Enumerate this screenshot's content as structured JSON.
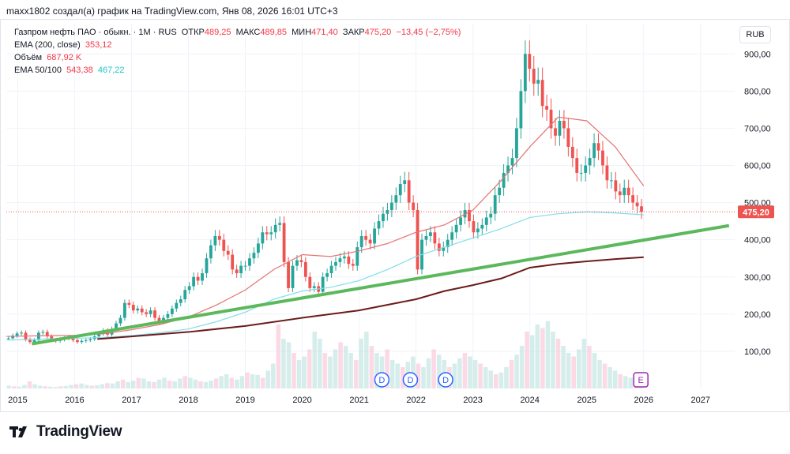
{
  "header": {
    "author_line": "maxx1802 создал(а) график на TradingView.com, Янв 08, 2026 16:01 UTC+3"
  },
  "legend": {
    "symbol": "Газпром нефть ПАО · обыкн. · 1M · RUS",
    "open_label": "ОТКР",
    "open": "489,25",
    "high_label": "МАКС",
    "high": "489,85",
    "low_label": "МИН",
    "low": "471,40",
    "close_label": "ЗАКР",
    "close": "475,20",
    "change": "−13,45 (−2,75%)",
    "ema200_label": "EMA (200, close)",
    "ema200_value": "353,12",
    "volume_label": "Объём",
    "volume_value": "687,92 K",
    "ema50100_label": "EMA 50/100",
    "ema50_value": "543,38",
    "ema100_value": "467,22"
  },
  "currency_button": "RUB",
  "brand": {
    "name": "TradingView"
  },
  "colors": {
    "up": "#26a69a",
    "down": "#ef5350",
    "trend": "#5cb85c",
    "ema200": "#6d1b1b",
    "ema50": "#e57373",
    "ema100": "#80deea",
    "event": "#2962ff",
    "earnings": "#9c27b0"
  },
  "chart_data": {
    "type": "candlestick",
    "title": "Газпром нефть ПАО · обыкн. · 1M · RUS",
    "currency": "RUB",
    "x_start": 2014.8,
    "x_end": 2027.6,
    "ylim": [
      0,
      960
    ],
    "y_ticks": [
      "100,00",
      "200,00",
      "300,00",
      "400,00",
      "500,00",
      "600,00",
      "700,00",
      "800,00",
      "900,00"
    ],
    "x_ticks": [
      "2015",
      "2016",
      "2017",
      "2018",
      "2019",
      "2020",
      "2021",
      "2022",
      "2023",
      "2024",
      "2025",
      "2026",
      "2027"
    ],
    "last_price_label": "475,20",
    "last_price": 475.2,
    "closes": [
      135,
      142,
      148,
      150,
      132,
      125,
      130,
      150,
      152,
      140,
      130,
      128,
      132,
      135,
      138,
      130,
      125,
      128,
      130,
      133,
      140,
      148,
      156,
      145,
      160,
      175,
      190,
      230,
      225,
      210,
      215,
      205,
      200,
      210,
      190,
      180,
      190,
      200,
      215,
      230,
      240,
      265,
      275,
      300,
      290,
      310,
      350,
      385,
      410,
      400,
      370,
      360,
      320,
      310,
      330,
      330,
      350,
      365,
      390,
      420,
      415,
      420,
      440,
      445,
      340,
      270,
      330,
      345,
      340,
      300,
      270,
      275,
      260,
      300,
      310,
      330,
      340,
      350,
      355,
      335,
      330,
      380,
      410,
      400,
      390,
      430,
      450,
      470,
      480,
      500,
      520,
      550,
      560,
      500,
      480,
      320,
      400,
      410,
      420,
      390,
      370,
      380,
      400,
      420,
      440,
      460,
      480,
      450,
      420,
      430,
      440,
      460,
      470,
      520,
      540,
      580,
      600,
      620,
      700,
      800,
      900,
      860,
      820,
      830,
      760,
      750,
      700,
      680,
      720,
      700,
      650,
      620,
      580,
      580,
      600,
      620,
      660,
      640,
      600,
      560,
      560,
      530,
      520,
      540,
      520,
      500,
      490,
      475.2
    ],
    "trendline": {
      "x": [
        2015.25,
        2027.5
      ],
      "y": [
        120,
        438
      ]
    },
    "ema200": {
      "x": [
        2016.4,
        2017.0,
        2018.0,
        2019.0,
        2020.0,
        2021.0,
        2022.0,
        2022.5,
        2023.0,
        2023.5,
        2024.0,
        2024.5,
        2025.0,
        2025.5,
        2026.0
      ],
      "y": [
        133,
        140,
        152,
        168,
        190,
        210,
        240,
        262,
        278,
        296,
        325,
        335,
        342,
        348,
        353
      ]
    },
    "ema50": {
      "x": [
        2014.8,
        2015.5,
        2016.0,
        2016.5,
        2017.0,
        2017.5,
        2018.0,
        2018.5,
        2019.0,
        2019.5,
        2020.0,
        2020.5,
        2021.0,
        2021.5,
        2022.0,
        2022.5,
        2023.0,
        2023.5,
        2024.0,
        2024.5,
        2025.0,
        2025.5,
        2026.0
      ],
      "y": [
        140,
        142,
        143,
        147,
        158,
        172,
        192,
        225,
        265,
        320,
        360,
        355,
        370,
        390,
        420,
        440,
        480,
        560,
        650,
        730,
        720,
        650,
        545
      ]
    },
    "ema100": {
      "x": [
        2014.8,
        2015.5,
        2016.0,
        2016.5,
        2017.0,
        2017.5,
        2018.0,
        2018.5,
        2019.0,
        2019.5,
        2020.0,
        2020.5,
        2021.0,
        2021.5,
        2022.0,
        2022.5,
        2023.0,
        2023.5,
        2024.0,
        2024.5,
        2025.0,
        2025.5,
        2026.0
      ],
      "y": [
        130,
        133,
        135,
        137,
        142,
        150,
        160,
        180,
        205,
        240,
        262,
        272,
        290,
        320,
        355,
        380,
        405,
        430,
        460,
        470,
        475,
        472,
        467
      ]
    },
    "volume_ylim": [
      0,
      200
    ],
    "volume_samples": [
      8,
      6,
      5,
      10,
      20,
      12,
      8,
      6,
      5,
      4,
      6,
      7,
      10,
      12,
      14,
      10,
      8,
      9,
      12,
      15,
      14,
      20,
      25,
      18,
      22,
      30,
      28,
      20,
      18,
      25,
      30,
      22,
      20,
      28,
      35,
      30,
      25,
      20,
      18,
      22,
      28,
      35,
      40,
      30,
      25,
      35,
      45,
      40,
      38,
      30,
      50,
      70,
      180,
      140,
      130,
      100,
      80,
      90,
      110,
      160,
      140,
      100,
      90,
      110,
      130,
      120,
      100,
      80,
      140,
      160,
      120,
      100,
      90,
      110,
      80,
      70,
      60,
      75,
      90,
      70,
      60,
      85,
      110,
      95,
      80,
      60,
      70,
      85,
      100,
      90,
      80,
      70,
      60,
      50,
      40,
      45,
      60,
      80,
      95,
      120,
      160,
      150,
      180,
      170,
      190,
      160,
      140,
      120,
      100,
      90,
      110,
      140,
      120,
      100,
      80,
      70,
      60,
      50,
      40,
      35,
      30,
      28,
      25
    ],
    "events": [
      {
        "x": 2021.4,
        "label": "D"
      },
      {
        "x": 2021.9,
        "label": "D"
      },
      {
        "x": 2022.52,
        "label": "D"
      },
      {
        "x": 2025.95,
        "label": "E"
      }
    ]
  }
}
